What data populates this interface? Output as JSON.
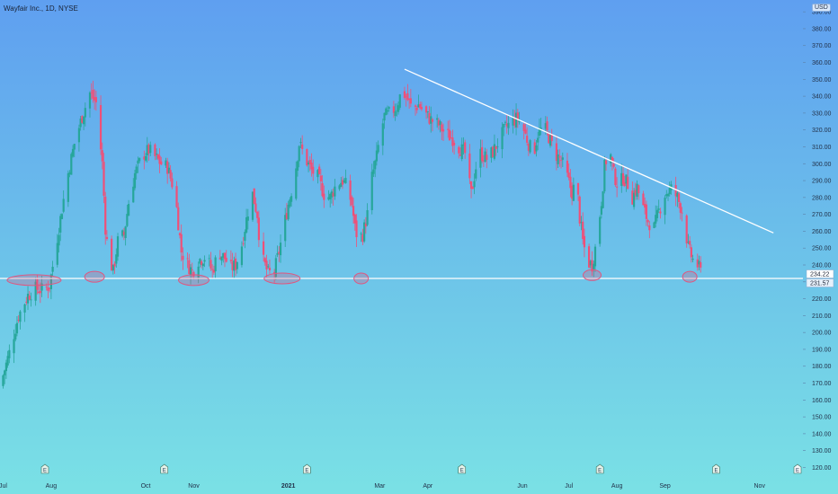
{
  "chart_data": {
    "type": "candlestick",
    "title": "Wayfair Inc., 1D, NYSE",
    "currency": "USD",
    "colors": {
      "up": "#26a69a",
      "down": "#ef5078",
      "line": "#ffffff",
      "ellipse": "#e0567f"
    },
    "ylim": [
      116,
      397
    ],
    "y_ticks": [
      120,
      130,
      140,
      150,
      160,
      170,
      180,
      190,
      200,
      210,
      220,
      230,
      240,
      250,
      260,
      270,
      280,
      290,
      300,
      310,
      320,
      330,
      340,
      350,
      360,
      370,
      380,
      390
    ],
    "price_labels": [
      "234.22",
      "231.57"
    ],
    "support_level": 232,
    "x_ticks": [
      {
        "label": "Jul",
        "day": 0
      },
      {
        "label": "Aug",
        "day": 31
      },
      {
        "label": "Oct",
        "day": 92
      },
      {
        "label": "Nov",
        "day": 123
      },
      {
        "label": "2021",
        "day": 184,
        "bold": true
      },
      {
        "label": "Mar",
        "day": 243
      },
      {
        "label": "Apr",
        "day": 274
      },
      {
        "label": "Jun",
        "day": 335
      },
      {
        "label": "Jul",
        "day": 365
      },
      {
        "label": "Aug",
        "day": 396
      },
      {
        "label": "Sep",
        "day": 427
      },
      {
        "label": "Nov",
        "day": 488
      }
    ],
    "earnings_markers": [
      "E",
      "E",
      "E",
      "E",
      "E",
      "E",
      "E"
    ],
    "trendline": {
      "from": [
        259,
        356
      ],
      "to": [
        497,
        259
      ]
    },
    "support_touches": [
      {
        "day": 20,
        "price": 231
      },
      {
        "day": 59,
        "price": 233
      },
      {
        "day": 123,
        "price": 231
      },
      {
        "day": 180,
        "price": 232
      },
      {
        "day": 231,
        "price": 232
      },
      {
        "day": 380,
        "price": 234
      },
      {
        "day": 443,
        "price": 233
      }
    ],
    "price_path": [
      [
        -2,
        168
      ],
      [
        4,
        188
      ],
      [
        10,
        210
      ],
      [
        16,
        222
      ],
      [
        21,
        226
      ],
      [
        26,
        225
      ],
      [
        30,
        228
      ],
      [
        36,
        262
      ],
      [
        41,
        290
      ],
      [
        46,
        312
      ],
      [
        51,
        328
      ],
      [
        56,
        342
      ],
      [
        60,
        336
      ],
      [
        64,
        300
      ],
      [
        66,
        262
      ],
      [
        68,
        246
      ],
      [
        71,
        236
      ],
      [
        74,
        254
      ],
      [
        78,
        258
      ],
      [
        81,
        277
      ],
      [
        85,
        294
      ],
      [
        90,
        305
      ],
      [
        94,
        308
      ],
      [
        98,
        304
      ],
      [
        102,
        300
      ],
      [
        106,
        298
      ],
      [
        111,
        282
      ],
      [
        113,
        265
      ],
      [
        115,
        248
      ],
      [
        118,
        242
      ],
      [
        122,
        236
      ],
      [
        126,
        243
      ],
      [
        131,
        245
      ],
      [
        135,
        236
      ],
      [
        139,
        248
      ],
      [
        143,
        244
      ],
      [
        147,
        238
      ],
      [
        150,
        240
      ],
      [
        154,
        252
      ],
      [
        158,
        272
      ],
      [
        161,
        282
      ],
      [
        164,
        270
      ],
      [
        166,
        248
      ],
      [
        168,
        242
      ],
      [
        171,
        235
      ],
      [
        175,
        236
      ],
      [
        178,
        248
      ],
      [
        181,
        262
      ],
      [
        184,
        276
      ],
      [
        188,
        292
      ],
      [
        191,
        312
      ],
      [
        195,
        303
      ],
      [
        199,
        296
      ],
      [
        203,
        292
      ],
      [
        207,
        282
      ],
      [
        211,
        280
      ],
      [
        215,
        288
      ],
      [
        219,
        290
      ],
      [
        222,
        286
      ],
      [
        225,
        276
      ],
      [
        227,
        262
      ],
      [
        229,
        255
      ],
      [
        232,
        258
      ],
      [
        235,
        270
      ],
      [
        238,
        292
      ],
      [
        241,
        304
      ],
      [
        243,
        316
      ],
      [
        246,
        328
      ],
      [
        250,
        330
      ],
      [
        254,
        334
      ],
      [
        257,
        343
      ],
      [
        260,
        340
      ],
      [
        264,
        332
      ],
      [
        268,
        335
      ],
      [
        272,
        330
      ],
      [
        276,
        326
      ],
      [
        281,
        323
      ],
      [
        285,
        318
      ],
      [
        290,
        315
      ],
      [
        294,
        310
      ],
      [
        298,
        306
      ],
      [
        300,
        292
      ],
      [
        302,
        282
      ],
      [
        305,
        298
      ],
      [
        308,
        306
      ],
      [
        312,
        303
      ],
      [
        316,
        307
      ],
      [
        320,
        314
      ],
      [
        324,
        321
      ],
      [
        328,
        325
      ],
      [
        332,
        327
      ],
      [
        335,
        322
      ],
      [
        339,
        312
      ],
      [
        342,
        305
      ],
      [
        345,
        318
      ],
      [
        349,
        322
      ],
      [
        352,
        316
      ],
      [
        356,
        306
      ],
      [
        360,
        302
      ],
      [
        364,
        292
      ],
      [
        367,
        283
      ],
      [
        370,
        290
      ],
      [
        372,
        268
      ],
      [
        374,
        254
      ],
      [
        377,
        242
      ],
      [
        380,
        240
      ],
      [
        382,
        250
      ],
      [
        384,
        262
      ],
      [
        386,
        278
      ],
      [
        388,
        298
      ],
      [
        391,
        310
      ],
      [
        394,
        294
      ],
      [
        397,
        286
      ],
      [
        400,
        292
      ],
      [
        403,
        288
      ],
      [
        406,
        280
      ],
      [
        409,
        286
      ],
      [
        412,
        276
      ],
      [
        416,
        266
      ],
      [
        420,
        262
      ],
      [
        423,
        272
      ],
      [
        427,
        282
      ],
      [
        431,
        285
      ],
      [
        435,
        280
      ],
      [
        438,
        272
      ],
      [
        440,
        262
      ],
      [
        442,
        250
      ],
      [
        445,
        243
      ],
      [
        448,
        240
      ],
      [
        450,
        236
      ]
    ]
  }
}
